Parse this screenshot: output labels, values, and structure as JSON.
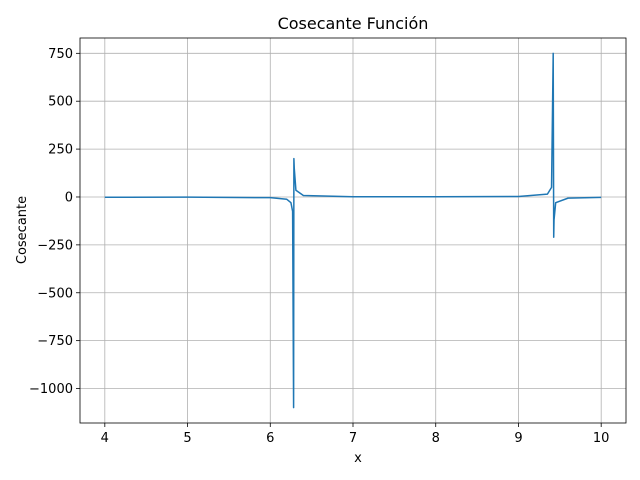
{
  "chart_data": {
    "type": "line",
    "title": "Cosecante Función",
    "xlabel": "x",
    "ylabel": "Cosecante",
    "xlim": [
      3.7,
      10.3
    ],
    "ylim": [
      -1180,
      830
    ],
    "xticks": [
      4,
      5,
      6,
      7,
      8,
      9,
      10
    ],
    "xtick_labels": [
      "4",
      "5",
      "6",
      "7",
      "8",
      "9",
      "10"
    ],
    "yticks": [
      -1000,
      -750,
      -500,
      -250,
      0,
      250,
      500,
      750
    ],
    "ytick_labels": [
      "−1000",
      "−750",
      "−500",
      "−250",
      "0",
      "250",
      "500",
      "750"
    ],
    "grid": true,
    "series": [
      {
        "color": "#1f77b4",
        "function": "csc(x)",
        "x_range": [
          4,
          10
        ],
        "x": [
          4.0,
          5.0,
          6.0,
          6.2,
          6.25,
          6.27,
          6.282,
          6.2855,
          6.29,
          6.31,
          6.4,
          7.0,
          8.0,
          9.0,
          9.35,
          9.4,
          9.42,
          9.4262,
          9.43,
          9.45,
          9.6,
          10.0
        ],
        "y": [
          -1.3,
          -1.0,
          -3.6,
          -12,
          -30,
          -75,
          -1100,
          200,
          150,
          35,
          8,
          1.5,
          1.0,
          2.4,
          15,
          50,
          750,
          -210,
          -120,
          -30,
          -6,
          -1.8
        ]
      }
    ]
  }
}
